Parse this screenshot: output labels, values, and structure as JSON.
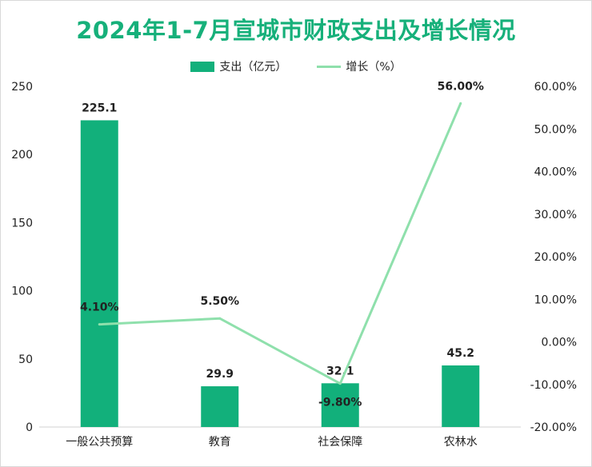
{
  "chart_data": {
    "type": "bar+line",
    "title": "2024年1-7月宣城市财政支出及增长情况",
    "categories": [
      "一般公共预算",
      "教育",
      "社会保障",
      "农林水"
    ],
    "series": [
      {
        "name": "支出（亿元）",
        "type": "bar",
        "axis": "left",
        "values": [
          225.1,
          29.9,
          32.1,
          45.2
        ],
        "labels": [
          "225.1",
          "29.9",
          "32.1",
          "45.2"
        ],
        "color": "#12b07b"
      },
      {
        "name": "增长（%）",
        "type": "line",
        "axis": "right",
        "values": [
          4.1,
          5.5,
          -9.8,
          56.0
        ],
        "labels": [
          "4.10%",
          "5.50%",
          "-9.80%",
          "56.00%"
        ],
        "color": "#8fe0ac"
      }
    ],
    "y_left": {
      "ylim": [
        0,
        250
      ],
      "ticks": [
        "0",
        "50",
        "100",
        "150",
        "200",
        "250"
      ]
    },
    "y_right": {
      "ylim": [
        -20,
        60
      ],
      "ticks": [
        "-20.00%",
        "-10.00%",
        "0.00%",
        "10.00%",
        "20.00%",
        "30.00%",
        "40.00%",
        "50.00%",
        "60.00%"
      ]
    },
    "legend_position": "top-center",
    "grid": false
  }
}
